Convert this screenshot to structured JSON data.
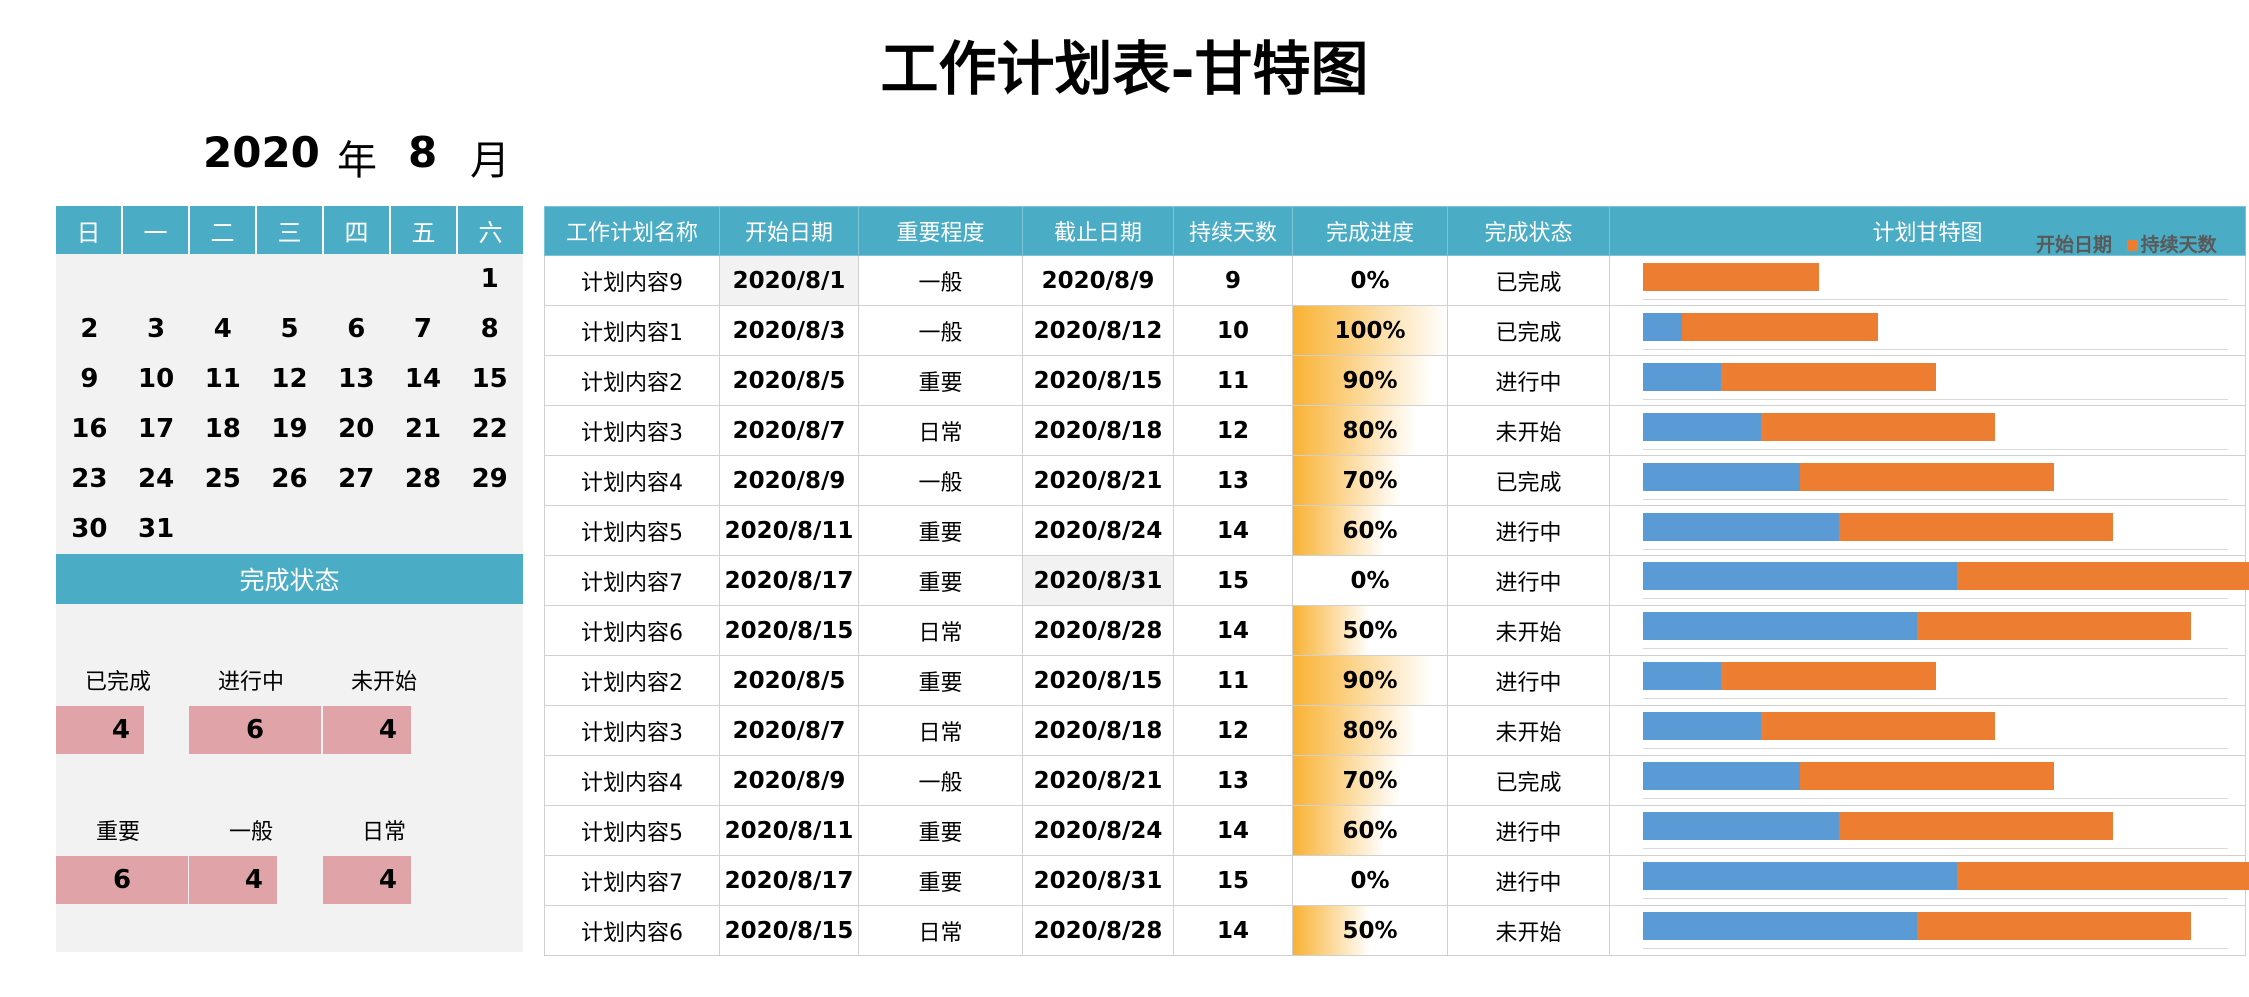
{
  "title": "工作计划表-甘特图",
  "year": "2020",
  "year_label": "年",
  "month": "8",
  "month_label": "月",
  "calendar": {
    "weekdays": [
      "日",
      "一",
      "二",
      "三",
      "四",
      "五",
      "六"
    ],
    "weeks": [
      [
        "",
        "",
        "",
        "",
        "",
        "",
        "1"
      ],
      [
        "2",
        "3",
        "4",
        "5",
        "6",
        "7",
        "8"
      ],
      [
        "9",
        "10",
        "11",
        "12",
        "13",
        "14",
        "15"
      ],
      [
        "16",
        "17",
        "18",
        "19",
        "20",
        "21",
        "22"
      ],
      [
        "23",
        "24",
        "25",
        "26",
        "27",
        "28",
        "29"
      ],
      [
        "30",
        "31",
        "",
        "",
        "",
        "",
        ""
      ]
    ]
  },
  "status_panel": {
    "header": "完成状态",
    "status_labels": [
      "已完成",
      "进行中",
      "未开始"
    ],
    "status_counts": [
      "4",
      "6",
      "4"
    ],
    "importance_labels": [
      "重要",
      "一般",
      "日常"
    ],
    "importance_counts": [
      "6",
      "4",
      "4"
    ]
  },
  "table": {
    "headers": [
      "工作计划名称",
      "开始日期",
      "重要程度",
      "截止日期",
      "持续天数",
      "完成进度",
      "完成状态",
      "计划甘特图"
    ],
    "rows": [
      {
        "name": "计划内容9",
        "start": "2020/8/1",
        "importance": "一般",
        "end": "2020/8/9",
        "days": "9",
        "progress": "0%",
        "status": "已完成"
      },
      {
        "name": "计划内容1",
        "start": "2020/8/3",
        "importance": "一般",
        "end": "2020/8/12",
        "days": "10",
        "progress": "100%",
        "status": "已完成"
      },
      {
        "name": "计划内容2",
        "start": "2020/8/5",
        "importance": "重要",
        "end": "2020/8/15",
        "days": "11",
        "progress": "90%",
        "status": "进行中"
      },
      {
        "name": "计划内容3",
        "start": "2020/8/7",
        "importance": "日常",
        "end": "2020/8/18",
        "days": "12",
        "progress": "80%",
        "status": "未开始"
      },
      {
        "name": "计划内容4",
        "start": "2020/8/9",
        "importance": "一般",
        "end": "2020/8/21",
        "days": "13",
        "progress": "70%",
        "status": "已完成"
      },
      {
        "name": "计划内容5",
        "start": "2020/8/11",
        "importance": "重要",
        "end": "2020/8/24",
        "days": "14",
        "progress": "60%",
        "status": "进行中"
      },
      {
        "name": "计划内容7",
        "start": "2020/8/17",
        "importance": "重要",
        "end": "2020/8/31",
        "days": "15",
        "progress": "0%",
        "status": "进行中"
      },
      {
        "name": "计划内容6",
        "start": "2020/8/15",
        "importance": "日常",
        "end": "2020/8/28",
        "days": "14",
        "progress": "50%",
        "status": "未开始"
      },
      {
        "name": "计划内容2",
        "start": "2020/8/5",
        "importance": "重要",
        "end": "2020/8/15",
        "days": "11",
        "progress": "90%",
        "status": "进行中"
      },
      {
        "name": "计划内容3",
        "start": "2020/8/7",
        "importance": "日常",
        "end": "2020/8/18",
        "days": "12",
        "progress": "80%",
        "status": "未开始"
      },
      {
        "name": "计划内容4",
        "start": "2020/8/9",
        "importance": "一般",
        "end": "2020/8/21",
        "days": "13",
        "progress": "70%",
        "status": "已完成"
      },
      {
        "name": "计划内容5",
        "start": "2020/8/11",
        "importance": "重要",
        "end": "2020/8/24",
        "days": "14",
        "progress": "60%",
        "status": "进行中"
      },
      {
        "name": "计划内容7",
        "start": "2020/8/17",
        "importance": "重要",
        "end": "2020/8/31",
        "days": "15",
        "progress": "0%",
        "status": "进行中"
      },
      {
        "name": "计划内容6",
        "start": "2020/8/15",
        "importance": "日常",
        "end": "2020/8/28",
        "days": "14",
        "progress": "50%",
        "status": "未开始"
      }
    ]
  },
  "chart_data": {
    "type": "bar",
    "orientation": "horizontal",
    "stacked": true,
    "title": "计划甘特图",
    "legend_position": "top-right",
    "categories": [
      "计划内容9",
      "计划内容1",
      "计划内容2",
      "计划内容3",
      "计划内容4",
      "计划内容5",
      "计划内容7",
      "计划内容6",
      "计划内容2",
      "计划内容3",
      "计划内容4",
      "计划内容5",
      "计划内容7",
      "计划内容6"
    ],
    "series": [
      {
        "name": "开始日期",
        "color": "#5b9bd5",
        "hidden_baseline": "2020/8/1",
        "values": [
          "2020/8/1",
          "2020/8/3",
          "2020/8/5",
          "2020/8/7",
          "2020/8/9",
          "2020/8/11",
          "2020/8/17",
          "2020/8/15",
          "2020/8/5",
          "2020/8/7",
          "2020/8/9",
          "2020/8/11",
          "2020/8/17",
          "2020/8/15"
        ]
      },
      {
        "name": "持续天数",
        "color": "#ed7d31",
        "values": [
          9,
          10,
          11,
          12,
          13,
          14,
          15,
          14,
          11,
          12,
          13,
          14,
          15,
          14
        ]
      }
    ]
  },
  "colors": {
    "header_bg": "#4bacc6",
    "panel_bg": "#f2f2f2",
    "count_box": "#e0a3a7",
    "progress_fill": "#f9b233"
  }
}
